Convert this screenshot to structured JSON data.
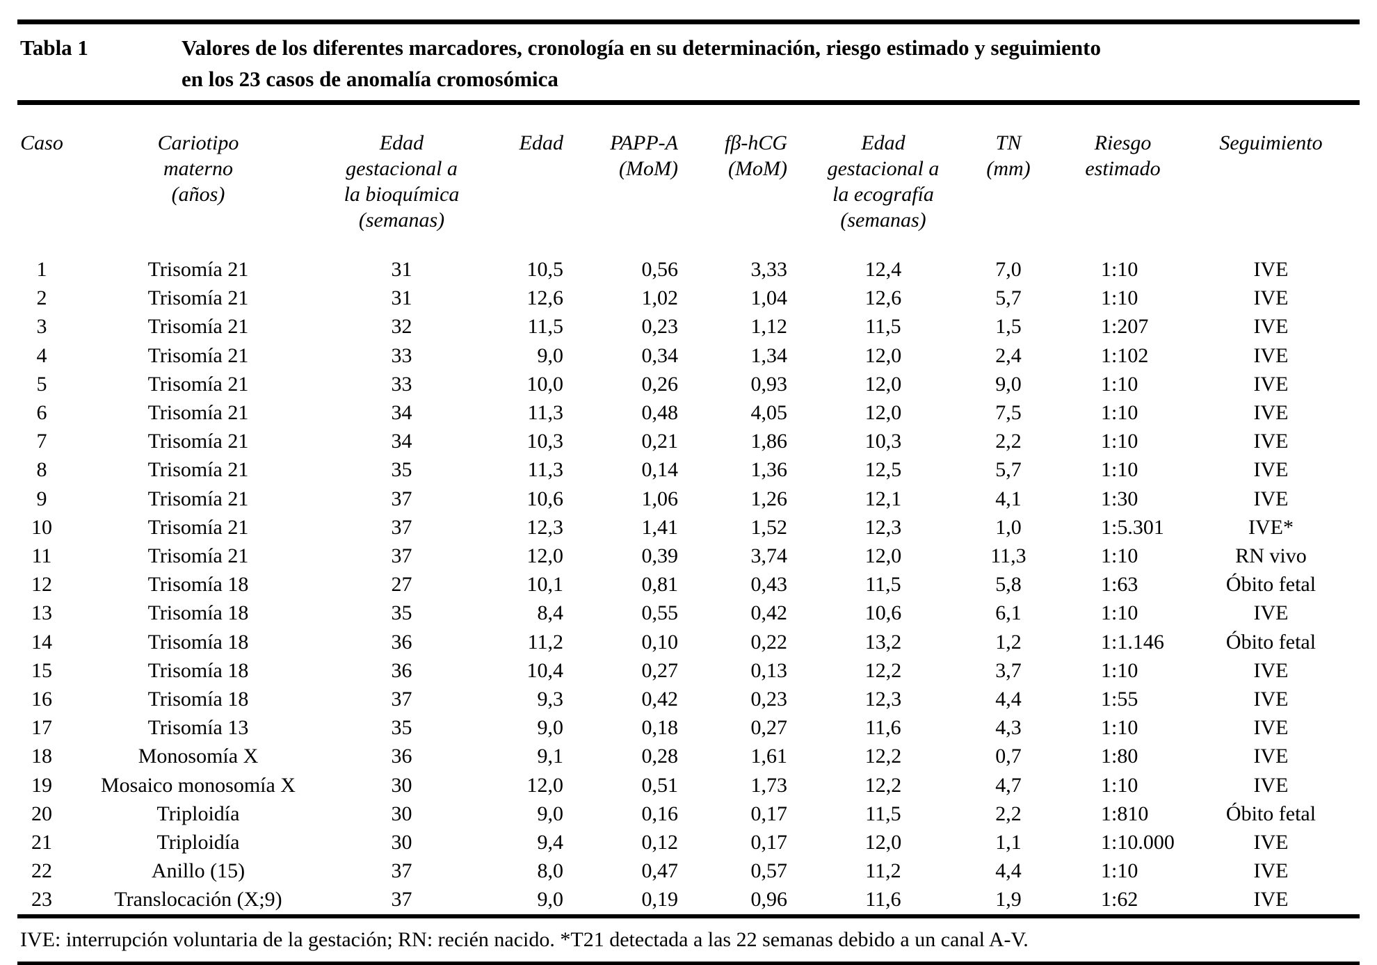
{
  "header": {
    "table_label": "Tabla 1",
    "title_lines": [
      "Valores de los diferentes marcadores, cronología en su determinación, riesgo estimado y seguimiento",
      "en los 23 casos de anomalía cromosómica"
    ]
  },
  "table": {
    "columns": [
      {
        "id": "caso",
        "header_lines": [
          "Caso"
        ]
      },
      {
        "id": "cariotipo-materno",
        "header_lines": [
          "Cariotipo",
          "materno",
          "(años)"
        ]
      },
      {
        "id": "edad-gestacional-bioquimica",
        "header_lines": [
          "Edad",
          "gestacional a",
          "la bioquímica",
          "(semanas)"
        ]
      },
      {
        "id": "edad",
        "header_lines": [
          "Edad"
        ]
      },
      {
        "id": "papp-a",
        "header_lines": [
          "PAPP-A",
          "(MoM)"
        ]
      },
      {
        "id": "fb-hcg",
        "header_lines": [
          "fβ-hCG",
          "(MoM)"
        ]
      },
      {
        "id": "edad-gestacional-ecografia",
        "header_lines": [
          "Edad",
          "gestacional a",
          "la ecografía",
          "(semanas)"
        ]
      },
      {
        "id": "tn",
        "header_lines": [
          "TN",
          "(mm)"
        ]
      },
      {
        "id": "riesgo-estimado",
        "header_lines": [
          "Riesgo",
          "estimado"
        ]
      },
      {
        "id": "seguimiento",
        "header_lines": [
          "Seguimiento"
        ]
      }
    ],
    "rows": [
      [
        "1",
        "Trisomía 21",
        "31",
        "10,5",
        "0,56",
        "3,33",
        "12,4",
        "7,0",
        "1:10",
        "IVE"
      ],
      [
        "2",
        "Trisomía 21",
        "31",
        "12,6",
        "1,02",
        "1,04",
        "12,6",
        "5,7",
        "1:10",
        "IVE"
      ],
      [
        "3",
        "Trisomía 21",
        "32",
        "11,5",
        "0,23",
        "1,12",
        "11,5",
        "1,5",
        "1:207",
        "IVE"
      ],
      [
        "4",
        "Trisomía 21",
        "33",
        "9,0",
        "0,34",
        "1,34",
        "12,0",
        "2,4",
        "1:102",
        "IVE"
      ],
      [
        "5",
        "Trisomía 21",
        "33",
        "10,0",
        "0,26",
        "0,93",
        "12,0",
        "9,0",
        "1:10",
        "IVE"
      ],
      [
        "6",
        "Trisomía 21",
        "34",
        "11,3",
        "0,48",
        "4,05",
        "12,0",
        "7,5",
        "1:10",
        "IVE"
      ],
      [
        "7",
        "Trisomía 21",
        "34",
        "10,3",
        "0,21",
        "1,86",
        "10,3",
        "2,2",
        "1:10",
        "IVE"
      ],
      [
        "8",
        "Trisomía 21",
        "35",
        "11,3",
        "0,14",
        "1,36",
        "12,5",
        "5,7",
        "1:10",
        "IVE"
      ],
      [
        "9",
        "Trisomía 21",
        "37",
        "10,6",
        "1,06",
        "1,26",
        "12,1",
        "4,1",
        "1:30",
        "IVE"
      ],
      [
        "10",
        "Trisomía 21",
        "37",
        "12,3",
        "1,41",
        "1,52",
        "12,3",
        "1,0",
        "1:5.301",
        "IVE*"
      ],
      [
        "11",
        "Trisomía 21",
        "37",
        "12,0",
        "0,39",
        "3,74",
        "12,0",
        "11,3",
        "1:10",
        "RN vivo"
      ],
      [
        "12",
        "Trisomía 18",
        "27",
        "10,1",
        "0,81",
        "0,43",
        "11,5",
        "5,8",
        "1:63",
        "Óbito fetal"
      ],
      [
        "13",
        "Trisomía 18",
        "35",
        "8,4",
        "0,55",
        "0,42",
        "10,6",
        "6,1",
        "1:10",
        "IVE"
      ],
      [
        "14",
        "Trisomía 18",
        "36",
        "11,2",
        "0,10",
        "0,22",
        "13,2",
        "1,2",
        "1:1.146",
        "Óbito fetal"
      ],
      [
        "15",
        "Trisomía 18",
        "36",
        "10,4",
        "0,27",
        "0,13",
        "12,2",
        "3,7",
        "1:10",
        "IVE"
      ],
      [
        "16",
        "Trisomía 18",
        "37",
        "9,3",
        "0,42",
        "0,23",
        "12,3",
        "4,4",
        "1:55",
        "IVE"
      ],
      [
        "17",
        "Trisomía 13",
        "35",
        "9,0",
        "0,18",
        "0,27",
        "11,6",
        "4,3",
        "1:10",
        "IVE"
      ],
      [
        "18",
        "Monosomía X",
        "36",
        "9,1",
        "0,28",
        "1,61",
        "12,2",
        "0,7",
        "1:80",
        "IVE"
      ],
      [
        "19",
        "Mosaico monosomía X",
        "30",
        "12,0",
        "0,51",
        "1,73",
        "12,2",
        "4,7",
        "1:10",
        "IVE"
      ],
      [
        "20",
        "Triploidía",
        "30",
        "9,0",
        "0,16",
        "0,17",
        "11,5",
        "2,2",
        "1:810",
        "Óbito fetal"
      ],
      [
        "21",
        "Triploidía",
        "30",
        "9,4",
        "0,12",
        "0,17",
        "12,0",
        "1,1",
        "1:10.000",
        "IVE"
      ],
      [
        "22",
        "Anillo (15)",
        "37",
        "8,0",
        "0,47",
        "0,57",
        "11,2",
        "4,4",
        "1:10",
        "IVE"
      ],
      [
        "23",
        "Translocación (X;9)",
        "37",
        "9,0",
        "0,19",
        "0,96",
        "11,6",
        "1,9",
        "1:62",
        "IVE"
      ]
    ]
  },
  "footnote": "IVE: interrupción voluntaria de la gestación; RN: recién nacido. *T21 detectada a las 22 semanas debido a un canal A-V."
}
